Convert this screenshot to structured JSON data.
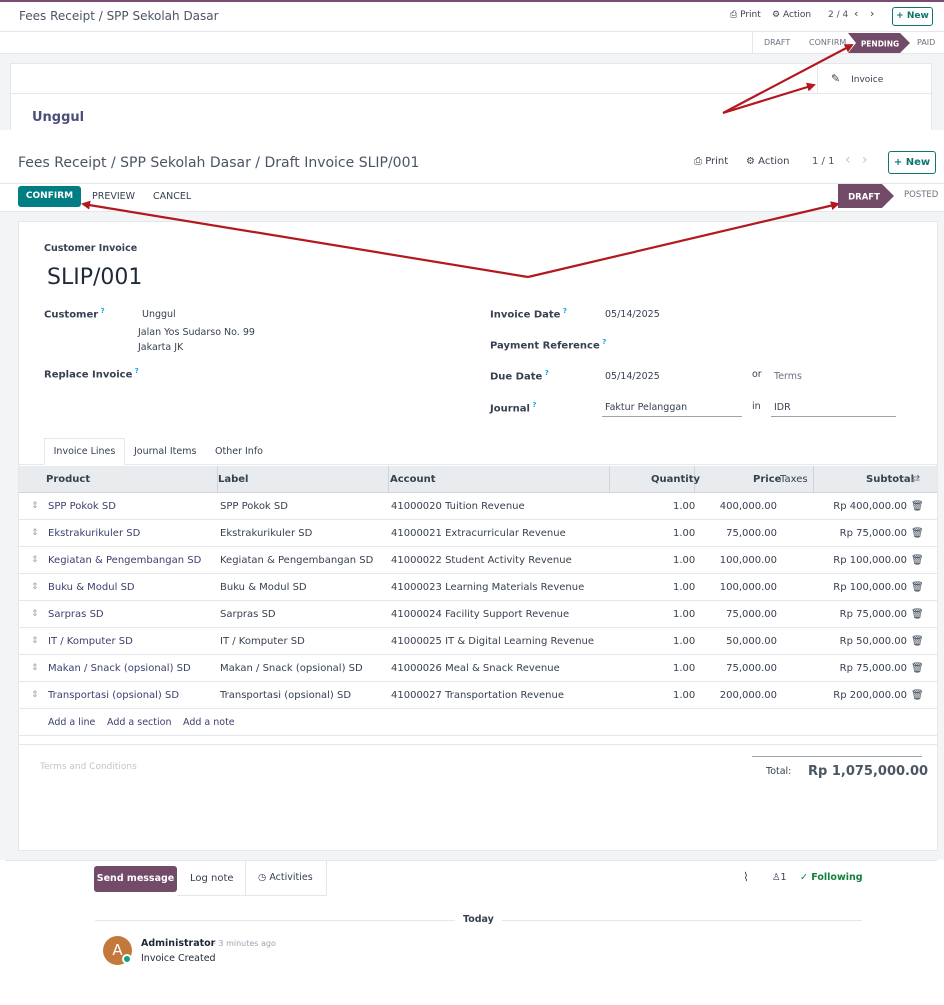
{
  "top": {
    "breadcrumb": "Fees Receipt / SPP Sekolah Dasar",
    "print": "Print",
    "action": "Action",
    "pager": "2 / 4",
    "new": "New",
    "stages": [
      "DRAFT",
      "CONFIRM",
      "PENDING",
      "PAID"
    ],
    "active_stage": "PENDING",
    "invoice_button": "Invoice",
    "record_name": "Unggul"
  },
  "main": {
    "breadcrumb": "Fees Receipt / SPP Sekolah Dasar / Draft Invoice SLIP/001",
    "print": "Print",
    "action": "Action",
    "pager": "1 / 1",
    "new": "New",
    "buttons": {
      "confirm": "CONFIRM",
      "preview": "PREVIEW",
      "cancel": "CANCEL"
    },
    "stages": [
      "DRAFT",
      "POSTED"
    ],
    "active_stage": "DRAFT",
    "doc_type": "Customer Invoice",
    "doc_number": "SLIP/001",
    "fields": {
      "customer_label": "Customer",
      "customer_name": "Unggul",
      "customer_addr1": "Jalan Yos Sudarso No. 99",
      "customer_addr2": "Jakarta JK",
      "replace_label": "Replace Invoice",
      "invoice_date_label": "Invoice Date",
      "invoice_date": "05/14/2025",
      "payment_ref_label": "Payment Reference",
      "due_date_label": "Due Date",
      "due_date": "05/14/2025",
      "or": "or",
      "terms": "Terms",
      "journal_label": "Journal",
      "journal": "Faktur Pelanggan",
      "in": "in",
      "currency": "IDR"
    },
    "tabs": [
      "Invoice Lines",
      "Journal Items",
      "Other Info"
    ],
    "columns": {
      "product": "Product",
      "label": "Label",
      "account": "Account",
      "quantity": "Quantity",
      "price": "Price",
      "taxes": "Taxes",
      "subtotal": "Subtotal"
    },
    "lines": [
      {
        "product": "SPP Pokok SD",
        "label": "SPP Pokok SD",
        "account": "41000020 Tuition Revenue",
        "qty": "1.00",
        "price": "400,000.00",
        "subtotal": "Rp 400,000.00"
      },
      {
        "product": "Ekstrakurikuler SD",
        "label": "Ekstrakurikuler SD",
        "account": "41000021 Extracurricular Revenue",
        "qty": "1.00",
        "price": "75,000.00",
        "subtotal": "Rp 75,000.00"
      },
      {
        "product": "Kegiatan & Pengembangan SD",
        "label": "Kegiatan & Pengembangan SD",
        "account": "41000022 Student Activity Revenue",
        "qty": "1.00",
        "price": "100,000.00",
        "subtotal": "Rp 100,000.00"
      },
      {
        "product": "Buku & Modul SD",
        "label": "Buku & Modul SD",
        "account": "41000023 Learning Materials Revenue",
        "qty": "1.00",
        "price": "100,000.00",
        "subtotal": "Rp 100,000.00"
      },
      {
        "product": "Sarpras SD",
        "label": "Sarpras SD",
        "account": "41000024 Facility Support Revenue",
        "qty": "1.00",
        "price": "75,000.00",
        "subtotal": "Rp 75,000.00"
      },
      {
        "product": "IT / Komputer SD",
        "label": "IT / Komputer SD",
        "account": "41000025 IT & Digital Learning Revenue",
        "qty": "1.00",
        "price": "50,000.00",
        "subtotal": "Rp 50,000.00"
      },
      {
        "product": "Makan / Snack (opsional) SD",
        "label": "Makan / Snack (opsional) SD",
        "account": "41000026 Meal & Snack Revenue",
        "qty": "1.00",
        "price": "75,000.00",
        "subtotal": "Rp 75,000.00"
      },
      {
        "product": "Transportasi (opsional) SD",
        "label": "Transportasi (opsional) SD",
        "account": "41000027 Transportation Revenue",
        "qty": "1.00",
        "price": "200,000.00",
        "subtotal": "Rp 200,000.00"
      }
    ],
    "add_line": "Add a line",
    "add_section": "Add a section",
    "add_note": "Add a note",
    "terms_placeholder": "Terms and Conditions",
    "total_label": "Total:",
    "total_value": "Rp 1,075,000.00"
  },
  "chatter": {
    "send_message": "Send message",
    "log_note": "Log note",
    "activities": "Activities",
    "followers_count": "1",
    "following": "Following",
    "today": "Today",
    "author": "Administrator",
    "time": "- 3 minutes ago",
    "avatar_letter": "A",
    "message": "Invoice Created"
  },
  "colors": {
    "brand": "#714B67",
    "accent": "#017E84",
    "annotation_arrow": "#B3181E"
  }
}
